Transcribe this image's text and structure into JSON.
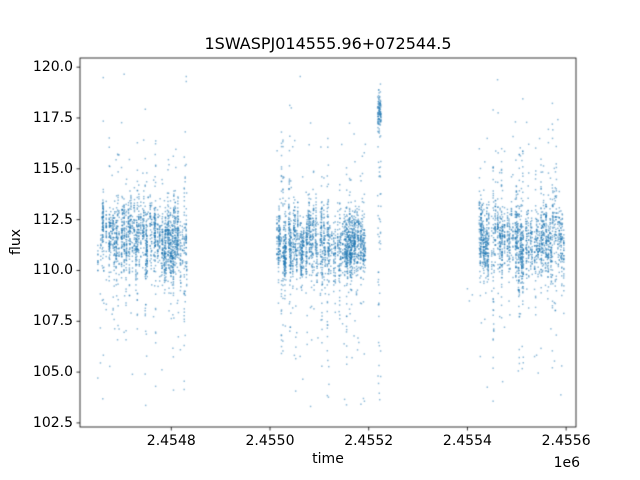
{
  "chart_data": {
    "type": "scatter",
    "title": "1SWASPJ014555.96+072544.5",
    "xlabel": "time",
    "ylabel": "flux",
    "x_offset_text": "1e6",
    "xlim": [
      2454615,
      2455620
    ],
    "ylim": [
      102.3,
      120.45
    ],
    "xticks": [
      2454800,
      2455000,
      2455200,
      2455400,
      2455600
    ],
    "xtick_labels": [
      "2.4548",
      "2.4550",
      "2.4552",
      "2.4554",
      "2.4556"
    ],
    "yticks": [
      102.5,
      105.0,
      107.5,
      110.0,
      112.5,
      115.0,
      117.5,
      120.0
    ],
    "ytick_labels": [
      "102.5",
      "105.0",
      "107.5",
      "110.0",
      "112.5",
      "115.0",
      "117.5",
      "120.0"
    ],
    "grid": false,
    "legend": null,
    "marker_color": "#1f77b4",
    "marker_alpha": 0.5,
    "marker_size_px": 1.5,
    "clusters": [
      {
        "t0": 2454650,
        "t1": 2454832,
        "night_prob_start": 0.35,
        "night_prob_end": 0.75,
        "per_night": 34,
        "flux_mu": 111.45,
        "night_sigma": 0.65,
        "point_sigma": 0.7,
        "tail_frac": 0.085,
        "noisy_night_frac": 0.07,
        "flux_min": 103.1,
        "flux_max": 119.7
      },
      {
        "t0": 2455014,
        "t1": 2455196,
        "night_prob_start": 0.62,
        "night_prob_end": 0.6,
        "per_night": 34,
        "flux_mu": 111.35,
        "night_sigma": 0.65,
        "point_sigma": 0.7,
        "tail_frac": 0.085,
        "noisy_night_frac": 0.07,
        "flux_min": 103.2,
        "flux_max": 119.6
      },
      {
        "t0": 2455424,
        "t1": 2455596,
        "night_prob_start": 0.55,
        "night_prob_end": 0.62,
        "per_night": 30,
        "flux_mu": 111.4,
        "night_sigma": 0.65,
        "point_sigma": 0.7,
        "tail_frac": 0.08,
        "noisy_night_frac": 0.06,
        "flux_min": 103.3,
        "flux_max": 119.6
      }
    ],
    "strips": [
      {
        "t0": 2455218,
        "t1": 2455225,
        "n": 150,
        "top_frac": 0.55,
        "top_mu": 117.8,
        "top_sigma": 0.55,
        "flux_min": 103.4,
        "flux_max": 119.5
      }
    ],
    "extra_points": [
      [
        2455400,
        109.1
      ],
      [
        2455404,
        108.5
      ],
      [
        2455410,
        108.8
      ]
    ]
  }
}
